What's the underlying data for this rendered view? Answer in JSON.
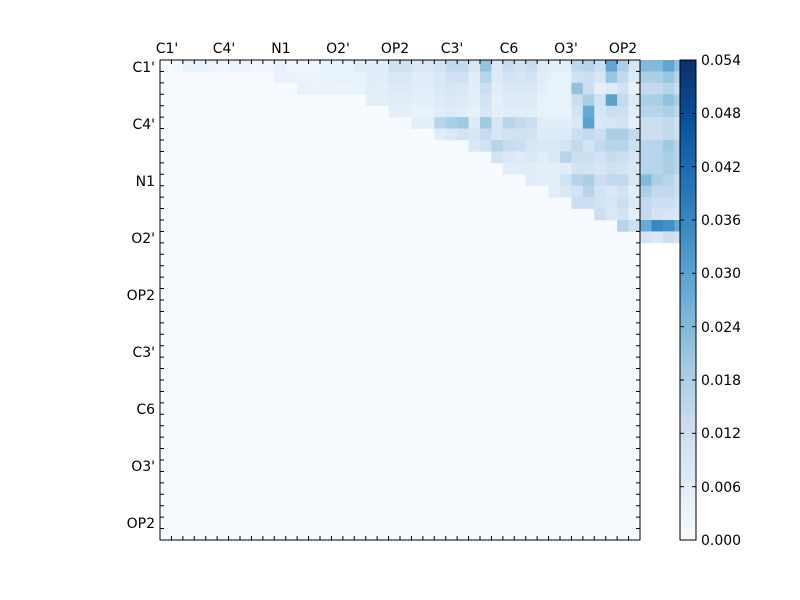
{
  "chart_data": {
    "type": "heatmap",
    "colormap": "Blues",
    "matrix_shape": "upper-triangular",
    "axis_labels": [
      "C1'",
      "C4'",
      "N1",
      "O2'",
      "OP2",
      "C3'",
      "C6",
      "O3'",
      "OP2"
    ],
    "colorbar": {
      "vmin": 0.0,
      "vmax": 0.054,
      "ticks": [
        "0.000",
        "0.006",
        "0.012",
        "0.018",
        "0.024",
        "0.030",
        "0.036",
        "0.042",
        "0.048",
        "0.054"
      ]
    },
    "rows": [
      [
        0,
        0.001,
        0.004,
        0.004,
        0.003,
        0.002,
        0.003,
        0.003,
        0.002,
        0.002,
        0.004,
        0.002,
        0.002,
        0.002,
        0.004,
        0.004,
        0.004,
        0.006,
        0.006,
        0.006,
        0.011,
        0.011,
        0.008,
        0.008,
        0.01,
        0.014,
        0.014,
        0.009,
        0.022,
        0.008,
        0.013,
        0.011,
        0.013,
        0.007,
        0.006,
        0.006,
        0.015,
        0.016,
        0.012,
        0.029,
        0.018,
        0.009,
        0.024,
        0.024,
        0.029,
        0.022
      ],
      [
        0,
        0,
        0,
        0,
        0,
        0,
        0,
        0,
        0,
        0,
        0.004,
        0.004,
        0.003,
        0.003,
        0.004,
        0.004,
        0.004,
        0.004,
        0.006,
        0.006,
        0.008,
        0.008,
        0.006,
        0.006,
        0.008,
        0.011,
        0.011,
        0.006,
        0.016,
        0.007,
        0.01,
        0.009,
        0.01,
        0.006,
        0.004,
        0.004,
        0.011,
        0.012,
        0.009,
        0.021,
        0.014,
        0.007,
        0.018,
        0.018,
        0.021,
        0.016
      ],
      [
        0,
        0,
        0,
        0,
        0,
        0,
        0,
        0,
        0,
        0,
        0,
        0,
        0.004,
        0.003,
        0.004,
        0.003,
        0.003,
        0.004,
        0.006,
        0.005,
        0.007,
        0.007,
        0.006,
        0.006,
        0.008,
        0.009,
        0.008,
        0.006,
        0.012,
        0.006,
        0.008,
        0.008,
        0.008,
        0.005,
        0.004,
        0.004,
        0.022,
        0.012,
        0.005,
        0.007,
        0.01,
        0.004,
        0.014,
        0.014,
        0.016,
        0.012
      ],
      [
        0,
        0,
        0,
        0,
        0,
        0,
        0,
        0,
        0,
        0,
        0,
        0,
        0,
        0,
        0,
        0,
        0,
        0,
        0.005,
        0.005,
        0.006,
        0.006,
        0.005,
        0.005,
        0.007,
        0.008,
        0.007,
        0.005,
        0.01,
        0.005,
        0.007,
        0.007,
        0.007,
        0.004,
        0.004,
        0.004,
        0.012,
        0.018,
        0.01,
        0.03,
        0.014,
        0.007,
        0.018,
        0.018,
        0.022,
        0.018
      ],
      [
        0,
        0,
        0,
        0,
        0,
        0,
        0,
        0,
        0,
        0,
        0,
        0,
        0,
        0,
        0,
        0,
        0,
        0,
        0,
        0,
        0.005,
        0.005,
        0.004,
        0.004,
        0.006,
        0.007,
        0.006,
        0.004,
        0.009,
        0.005,
        0.006,
        0.006,
        0.006,
        0.004,
        0.004,
        0.004,
        0.01,
        0.028,
        0.009,
        0.012,
        0.012,
        0.006,
        0.016,
        0.016,
        0.018,
        0.015
      ],
      [
        0,
        0,
        0,
        0,
        0,
        0,
        0,
        0,
        0,
        0,
        0,
        0,
        0,
        0,
        0,
        0,
        0,
        0,
        0,
        0,
        0,
        0,
        0.005,
        0.005,
        0.016,
        0.018,
        0.02,
        0.007,
        0.02,
        0.009,
        0.016,
        0.014,
        0.012,
        0.006,
        0.006,
        0.006,
        0.008,
        0.03,
        0.008,
        0.009,
        0.01,
        0.005,
        0.012,
        0.012,
        0.014,
        0.011
      ],
      [
        0,
        0,
        0,
        0,
        0,
        0,
        0,
        0,
        0,
        0,
        0,
        0,
        0,
        0,
        0,
        0,
        0,
        0,
        0,
        0,
        0,
        0,
        0,
        0,
        0.006,
        0.008,
        0.01,
        0.009,
        0.013,
        0.009,
        0.011,
        0.011,
        0.01,
        0.007,
        0.007,
        0.007,
        0.012,
        0.014,
        0.012,
        0.018,
        0.018,
        0.014,
        0.012,
        0.012,
        0.014,
        0.012
      ],
      [
        0,
        0,
        0,
        0,
        0,
        0,
        0,
        0,
        0,
        0,
        0,
        0,
        0,
        0,
        0,
        0,
        0,
        0,
        0,
        0,
        0,
        0,
        0,
        0,
        0,
        0,
        0,
        0.008,
        0.011,
        0.016,
        0.013,
        0.012,
        0.009,
        0.008,
        0.008,
        0.01,
        0.014,
        0.01,
        0.014,
        0.016,
        0.016,
        0.012,
        0.016,
        0.016,
        0.02,
        0.016
      ],
      [
        0,
        0,
        0,
        0,
        0,
        0,
        0,
        0,
        0,
        0,
        0,
        0,
        0,
        0,
        0,
        0,
        0,
        0,
        0,
        0,
        0,
        0,
        0,
        0,
        0,
        0,
        0,
        0,
        0,
        0.01,
        0.008,
        0.007,
        0.008,
        0.006,
        0.008,
        0.016,
        0.012,
        0.012,
        0.01,
        0.013,
        0.012,
        0.009,
        0.016,
        0.016,
        0.018,
        0.016
      ],
      [
        0,
        0,
        0,
        0,
        0,
        0,
        0,
        0,
        0,
        0,
        0,
        0,
        0,
        0,
        0,
        0,
        0,
        0,
        0,
        0,
        0,
        0,
        0,
        0,
        0,
        0,
        0,
        0,
        0,
        0,
        0.006,
        0.006,
        0.006,
        0.005,
        0.005,
        0.006,
        0.01,
        0.01,
        0.009,
        0.011,
        0.01,
        0.008,
        0.016,
        0.016,
        0.018,
        0.016
      ],
      [
        0,
        0,
        0,
        0,
        0,
        0,
        0,
        0,
        0,
        0,
        0,
        0,
        0,
        0,
        0,
        0,
        0,
        0,
        0,
        0,
        0,
        0,
        0,
        0,
        0,
        0,
        0,
        0,
        0,
        0,
        0,
        0,
        0.006,
        0.005,
        0.005,
        0.01,
        0.016,
        0.018,
        0.012,
        0.014,
        0.014,
        0.008,
        0.024,
        0.018,
        0.016,
        0.012
      ],
      [
        0,
        0,
        0,
        0,
        0,
        0,
        0,
        0,
        0,
        0,
        0,
        0,
        0,
        0,
        0,
        0,
        0,
        0,
        0,
        0,
        0,
        0,
        0,
        0,
        0,
        0,
        0,
        0,
        0,
        0,
        0,
        0,
        0,
        0,
        0.006,
        0.008,
        0.01,
        0.016,
        0.01,
        0.008,
        0.01,
        0.006,
        0.018,
        0.014,
        0.014,
        0.012
      ],
      [
        0,
        0,
        0,
        0,
        0,
        0,
        0,
        0,
        0,
        0,
        0,
        0,
        0,
        0,
        0,
        0,
        0,
        0,
        0,
        0,
        0,
        0,
        0,
        0,
        0,
        0,
        0,
        0,
        0,
        0,
        0,
        0,
        0,
        0,
        0,
        0,
        0.012,
        0.012,
        0.01,
        0.009,
        0.012,
        0.007,
        0.014,
        0.012,
        0.012,
        0.01
      ],
      [
        0,
        0,
        0,
        0,
        0,
        0,
        0,
        0,
        0,
        0,
        0,
        0,
        0,
        0,
        0,
        0,
        0,
        0,
        0,
        0,
        0,
        0,
        0,
        0,
        0,
        0,
        0,
        0,
        0,
        0,
        0,
        0,
        0,
        0,
        0,
        0,
        0,
        0,
        0.012,
        0.008,
        0.01,
        0.005,
        0.014,
        0.01,
        0.009,
        0.008
      ],
      [
        0,
        0,
        0,
        0,
        0,
        0,
        0,
        0,
        0,
        0,
        0,
        0,
        0,
        0,
        0,
        0,
        0,
        0,
        0,
        0,
        0,
        0,
        0,
        0,
        0,
        0,
        0,
        0,
        0,
        0,
        0,
        0,
        0,
        0,
        0,
        0,
        0,
        0,
        0,
        0,
        0.016,
        0.012,
        0.028,
        0.036,
        0.034,
        0.028
      ],
      [
        0,
        0,
        0,
        0,
        0,
        0,
        0,
        0,
        0,
        0,
        0,
        0,
        0,
        0,
        0,
        0,
        0,
        0,
        0,
        0,
        0,
        0,
        0,
        0,
        0,
        0,
        0,
        0,
        0,
        0,
        0,
        0,
        0,
        0,
        0,
        0,
        0,
        0,
        0,
        0,
        0,
        0,
        0.01,
        0.008,
        0.012,
        0.01
      ]
    ]
  }
}
